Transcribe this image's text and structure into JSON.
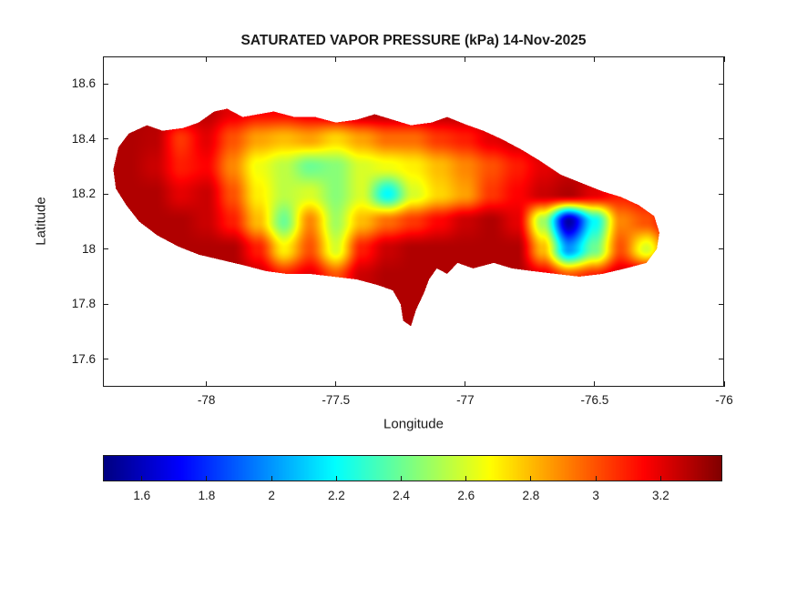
{
  "figure": {
    "title": "SATURATED VAPOR PRESSURE (kPa) 14-Nov-2025",
    "xlabel": "Longitude",
    "ylabel": "Latitude"
  },
  "chart_data": {
    "type": "heatmap",
    "title": "SATURATED VAPOR PRESSURE (kPa) 14-Nov-2025",
    "xlabel": "Longitude",
    "ylabel": "Latitude",
    "units": "kPa",
    "xlim": [
      -78.4,
      -76.0
    ],
    "ylim": [
      17.5,
      18.7
    ],
    "xticks": [
      -78,
      -77.5,
      -77,
      -76.5,
      -76
    ],
    "xtick_labels": [
      "-78",
      "-77.5",
      "-77",
      "-76.5",
      "-76"
    ],
    "yticks": [
      17.6,
      17.8,
      18,
      18.2,
      18.4,
      18.6
    ],
    "ytick_labels": [
      "17.6",
      "17.8",
      "18",
      "18.2",
      "18.4",
      "18.6"
    ],
    "colormap": "jet",
    "value_range": [
      1.48,
      3.39
    ],
    "colorbar": {
      "orientation": "horizontal",
      "ticks": [
        1.6,
        1.8,
        2,
        2.2,
        2.4,
        2.6,
        2.8,
        3,
        3.2
      ],
      "tick_labels": [
        "1.6",
        "1.8",
        "2",
        "2.2",
        "2.4",
        "2.6",
        "2.8",
        "3",
        "3.2"
      ]
    },
    "grid": {
      "lon_start": -78.4,
      "lon_step": 0.1,
      "nlon": 25,
      "lat_start": 18.6,
      "lat_step": -0.1,
      "nlat": 11,
      "values": [
        [
          3.3,
          3.3,
          3.3,
          3.3,
          3.3,
          3.3,
          3.3,
          3.3,
          3.3,
          3.3,
          3.3,
          3.3,
          3.3,
          3.3,
          3.3,
          3.3,
          3.3,
          3.3,
          3.3,
          3.3,
          3.3,
          3.3,
          3.3,
          3.3,
          3.3
        ],
        [
          3.3,
          3.3,
          3.3,
          3.3,
          3.28,
          3.2,
          3.15,
          3.15,
          3.2,
          3.25,
          3.3,
          3.3,
          3.3,
          3.3,
          3.3,
          3.3,
          3.3,
          3.3,
          3.3,
          3.3,
          3.3,
          3.3,
          3.3,
          3.3,
          3.3
        ],
        [
          3.3,
          3.3,
          3.28,
          3.05,
          3.2,
          3.0,
          2.85,
          2.8,
          2.85,
          2.75,
          2.85,
          2.95,
          2.95,
          3.05,
          3.1,
          3.2,
          3.25,
          3.3,
          3.3,
          3.3,
          3.3,
          3.3,
          3.3,
          3.3,
          3.3
        ],
        [
          3.3,
          3.3,
          3.25,
          3.1,
          3.15,
          2.9,
          2.65,
          2.55,
          2.4,
          2.45,
          2.6,
          2.65,
          2.7,
          2.8,
          2.9,
          3.0,
          3.1,
          3.2,
          3.25,
          3.3,
          3.3,
          3.3,
          3.3,
          3.3,
          3.3
        ],
        [
          3.3,
          3.3,
          3.3,
          3.2,
          3.25,
          3.0,
          2.7,
          2.55,
          2.6,
          2.45,
          2.6,
          2.2,
          2.6,
          2.75,
          2.85,
          3.05,
          3.15,
          3.25,
          3.3,
          3.2,
          3.1,
          3.15,
          3.3,
          3.3,
          3.3
        ],
        [
          3.3,
          3.3,
          3.3,
          3.3,
          3.25,
          3.1,
          2.8,
          2.4,
          2.9,
          2.5,
          2.8,
          2.95,
          3.05,
          3.15,
          3.25,
          3.3,
          3.2,
          2.5,
          1.55,
          2.2,
          2.9,
          3.0,
          3.2,
          3.3,
          3.3
        ],
        [
          3.3,
          3.3,
          3.3,
          3.3,
          3.3,
          3.3,
          3.1,
          2.7,
          3.0,
          2.6,
          3.1,
          3.25,
          3.3,
          3.3,
          3.3,
          3.3,
          3.3,
          2.8,
          2.0,
          2.4,
          3.0,
          2.6,
          3.1,
          3.3,
          3.3
        ],
        [
          3.3,
          3.3,
          3.3,
          3.3,
          3.3,
          3.3,
          3.25,
          3.1,
          3.2,
          3.0,
          3.25,
          3.3,
          3.3,
          3.3,
          3.3,
          3.3,
          3.3,
          3.2,
          3.0,
          3.1,
          3.25,
          3.3,
          3.3,
          3.3,
          3.3
        ],
        [
          3.3,
          3.3,
          3.3,
          3.3,
          3.3,
          3.3,
          3.3,
          3.3,
          3.3,
          3.3,
          3.3,
          3.3,
          3.3,
          3.3,
          3.3,
          3.3,
          3.3,
          3.3,
          3.3,
          3.3,
          3.3,
          3.3,
          3.3,
          3.3,
          3.3
        ],
        [
          3.3,
          3.3,
          3.3,
          3.3,
          3.3,
          3.3,
          3.3,
          3.3,
          3.3,
          3.3,
          3.3,
          3.3,
          3.3,
          3.3,
          3.3,
          3.3,
          3.3,
          3.3,
          3.3,
          3.3,
          3.3,
          3.3,
          3.3,
          3.3,
          3.3
        ],
        [
          3.3,
          3.3,
          3.3,
          3.3,
          3.3,
          3.3,
          3.3,
          3.3,
          3.3,
          3.3,
          3.3,
          3.3,
          3.3,
          3.3,
          3.3,
          3.3,
          3.3,
          3.3,
          3.3,
          3.3,
          3.3,
          3.3,
          3.3,
          3.3,
          3.3
        ]
      ]
    },
    "coastline": [
      [
        -78.36,
        18.29
      ],
      [
        -78.34,
        18.37
      ],
      [
        -78.3,
        18.42
      ],
      [
        -78.23,
        18.45
      ],
      [
        -78.17,
        18.43
      ],
      [
        -78.09,
        18.44
      ],
      [
        -78.03,
        18.46
      ],
      [
        -77.97,
        18.5
      ],
      [
        -77.92,
        18.51
      ],
      [
        -77.86,
        18.48
      ],
      [
        -77.8,
        18.49
      ],
      [
        -77.74,
        18.5
      ],
      [
        -77.66,
        18.48
      ],
      [
        -77.58,
        18.48
      ],
      [
        -77.5,
        18.46
      ],
      [
        -77.42,
        18.47
      ],
      [
        -77.35,
        18.49
      ],
      [
        -77.28,
        18.47
      ],
      [
        -77.21,
        18.45
      ],
      [
        -77.13,
        18.46
      ],
      [
        -77.07,
        18.48
      ],
      [
        -76.99,
        18.45
      ],
      [
        -76.93,
        18.43
      ],
      [
        -76.86,
        18.4
      ],
      [
        -76.78,
        18.36
      ],
      [
        -76.71,
        18.32
      ],
      [
        -76.63,
        18.27
      ],
      [
        -76.55,
        18.24
      ],
      [
        -76.47,
        18.21
      ],
      [
        -76.4,
        18.19
      ],
      [
        -76.33,
        18.16
      ],
      [
        -76.27,
        18.12
      ],
      [
        -76.25,
        18.06
      ],
      [
        -76.26,
        18.0
      ],
      [
        -76.3,
        17.95
      ],
      [
        -76.38,
        17.93
      ],
      [
        -76.47,
        17.91
      ],
      [
        -76.56,
        17.9
      ],
      [
        -76.65,
        17.91
      ],
      [
        -76.74,
        17.92
      ],
      [
        -76.82,
        17.93
      ],
      [
        -76.89,
        17.95
      ],
      [
        -76.97,
        17.93
      ],
      [
        -77.03,
        17.95
      ],
      [
        -77.07,
        17.91
      ],
      [
        -77.11,
        17.93
      ],
      [
        -77.14,
        17.89
      ],
      [
        -77.16,
        17.84
      ],
      [
        -77.19,
        17.78
      ],
      [
        -77.21,
        17.72
      ],
      [
        -77.24,
        17.74
      ],
      [
        -77.25,
        17.8
      ],
      [
        -77.28,
        17.85
      ],
      [
        -77.34,
        17.87
      ],
      [
        -77.42,
        17.89
      ],
      [
        -77.51,
        17.9
      ],
      [
        -77.6,
        17.91
      ],
      [
        -77.69,
        17.91
      ],
      [
        -77.77,
        17.92
      ],
      [
        -77.85,
        17.94
      ],
      [
        -77.94,
        17.96
      ],
      [
        -78.03,
        17.98
      ],
      [
        -78.11,
        18.01
      ],
      [
        -78.19,
        18.05
      ],
      [
        -78.26,
        18.1
      ],
      [
        -78.31,
        18.16
      ],
      [
        -78.35,
        18.22
      ]
    ]
  }
}
